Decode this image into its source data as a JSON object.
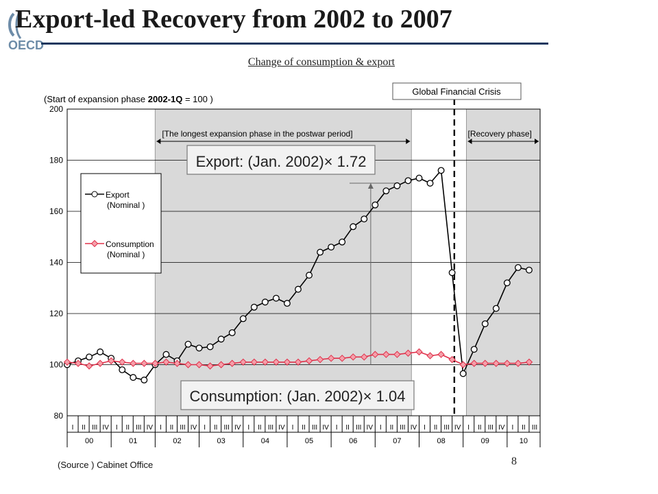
{
  "title": "Export-led Recovery from 2002 to 2007",
  "logo_text": "OECD",
  "subtitle": "Change of consumption & export",
  "page_number": "8",
  "source": "(Source ) Cabinet Office",
  "colors": {
    "export": "#000000",
    "consumption": "#e0304a",
    "shading": "#d9d9d9",
    "title_rule": "#17375e"
  },
  "chart_data": {
    "type": "line",
    "index_note": {
      "prefix": "(Start of expansion phase ",
      "bold": "2002-1Q",
      "suffix": " = 100 )"
    },
    "ylim": [
      80,
      200
    ],
    "yticks": [
      "80",
      "100",
      "120",
      "140",
      "160",
      "180",
      "200"
    ],
    "quarter_labels": [
      "I",
      "II",
      "III",
      "IV"
    ],
    "years": [
      "00",
      "01",
      "02",
      "03",
      "04",
      "05",
      "06",
      "07",
      "08",
      "09",
      "10"
    ],
    "x_range": [
      0,
      43
    ],
    "series": [
      {
        "name": "Export (Nominal )",
        "color": "#000000",
        "marker": "circle",
        "points": [
          [
            0,
            100
          ],
          [
            1,
            101.5
          ],
          [
            2,
            103
          ],
          [
            3,
            105
          ],
          [
            4,
            102.5
          ],
          [
            5,
            98
          ],
          [
            6,
            95
          ],
          [
            7,
            94
          ],
          [
            8,
            100
          ],
          [
            9,
            104
          ],
          [
            10,
            101.5
          ],
          [
            11,
            108
          ],
          [
            12,
            106.5
          ],
          [
            13,
            107
          ],
          [
            14,
            110
          ],
          [
            15,
            112.5
          ],
          [
            16,
            118
          ],
          [
            17,
            122.5
          ],
          [
            18,
            124.5
          ],
          [
            19,
            126
          ],
          [
            20,
            124
          ],
          [
            21,
            129.5
          ],
          [
            22,
            135
          ],
          [
            23,
            144
          ],
          [
            24,
            146
          ],
          [
            25,
            148
          ],
          [
            26,
            154
          ],
          [
            27,
            157
          ],
          [
            28,
            162.5
          ],
          [
            29,
            168
          ],
          [
            30,
            170
          ],
          [
            31,
            172
          ],
          [
            32,
            173
          ],
          [
            33,
            171
          ],
          [
            34,
            176
          ],
          [
            35,
            136
          ],
          [
            36,
            96.5
          ],
          [
            37,
            106
          ],
          [
            38,
            116
          ],
          [
            39,
            122
          ],
          [
            40,
            132
          ],
          [
            41,
            138
          ],
          [
            42,
            137
          ]
        ]
      },
      {
        "name": "Consumption (Nominal )",
        "color": "#e0304a",
        "marker": "diamond",
        "points": [
          [
            0,
            101
          ],
          [
            1,
            100.5
          ],
          [
            2,
            99.5
          ],
          [
            3,
            100.5
          ],
          [
            4,
            101.5
          ],
          [
            5,
            101
          ],
          [
            6,
            100.5
          ],
          [
            7,
            100.5
          ],
          [
            8,
            100.5
          ],
          [
            9,
            101
          ],
          [
            10,
            100.5
          ],
          [
            11,
            100
          ],
          [
            12,
            100
          ],
          [
            13,
            99.5
          ],
          [
            14,
            100
          ],
          [
            15,
            100.5
          ],
          [
            16,
            101
          ],
          [
            17,
            101
          ],
          [
            18,
            101
          ],
          [
            19,
            101
          ],
          [
            20,
            101
          ],
          [
            21,
            101
          ],
          [
            22,
            101.5
          ],
          [
            23,
            102
          ],
          [
            24,
            102.5
          ],
          [
            25,
            102.5
          ],
          [
            26,
            103
          ],
          [
            27,
            103
          ],
          [
            28,
            104
          ],
          [
            29,
            104
          ],
          [
            30,
            104
          ],
          [
            31,
            104.5
          ],
          [
            32,
            105
          ],
          [
            33,
            103.5
          ],
          [
            34,
            104
          ],
          [
            35,
            102
          ],
          [
            36,
            100
          ],
          [
            37,
            100.5
          ],
          [
            38,
            100.5
          ],
          [
            39,
            100.5
          ],
          [
            40,
            100.5
          ],
          [
            41,
            100.5
          ],
          [
            42,
            101
          ]
        ]
      }
    ],
    "legend": {
      "position": "left",
      "entries": [
        {
          "line1": "Export",
          "line2": "(Nominal )"
        },
        {
          "line1": "Consumption",
          "line2": "(Nominal )"
        }
      ]
    },
    "shaded_periods": [
      {
        "label": "[The longest expansion phase in the postwar period]",
        "start": 8,
        "end": 31.3
      },
      {
        "label": "[Recovery phase]",
        "start": 36.3,
        "end": 43
      }
    ],
    "crisis": {
      "label": "Global Financial Crisis",
      "x": 35.2
    },
    "annotations": {
      "export": "Export: (Jan. 2002)× 1.72",
      "consumption": "Consumption:  (Jan. 2002)× 1.04"
    },
    "grid": true
  }
}
